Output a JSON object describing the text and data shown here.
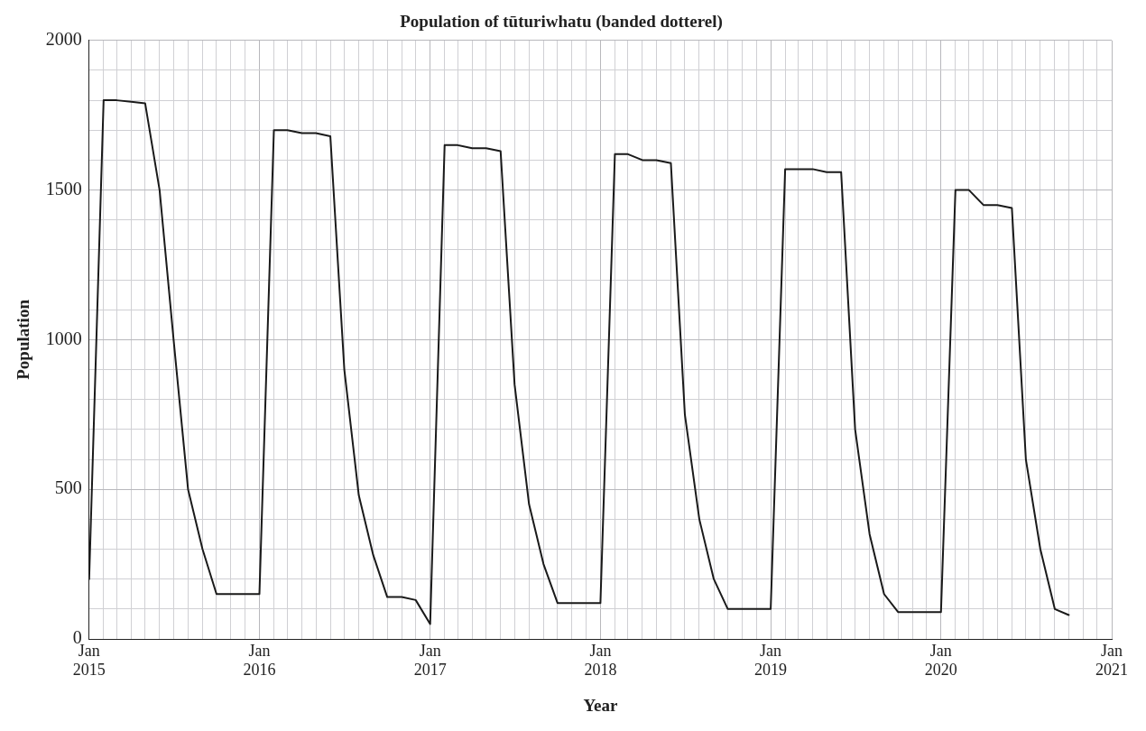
{
  "chart_data": {
    "type": "line",
    "title": "Population of tūturiwhatu (banded dotterel)",
    "xlabel": "Year",
    "ylabel": "Population",
    "x": [
      "2015-01",
      "2015-02",
      "2015-03",
      "2015-04",
      "2015-05",
      "2015-06",
      "2015-07",
      "2015-08",
      "2015-09",
      "2015-10",
      "2015-11",
      "2015-12",
      "2016-01",
      "2016-02",
      "2016-03",
      "2016-04",
      "2016-05",
      "2016-06",
      "2016-07",
      "2016-08",
      "2016-09",
      "2016-10",
      "2016-11",
      "2016-12",
      "2017-01",
      "2017-02",
      "2017-03",
      "2017-04",
      "2017-05",
      "2017-06",
      "2017-07",
      "2017-08",
      "2017-09",
      "2017-10",
      "2017-11",
      "2017-12",
      "2018-01",
      "2018-02",
      "2018-03",
      "2018-04",
      "2018-05",
      "2018-06",
      "2018-07",
      "2018-08",
      "2018-09",
      "2018-10",
      "2018-11",
      "2018-12",
      "2019-01",
      "2019-02",
      "2019-03",
      "2019-04",
      "2019-05",
      "2019-06",
      "2019-07",
      "2019-08",
      "2019-09",
      "2019-10",
      "2019-11",
      "2019-12",
      "2020-01",
      "2020-02",
      "2020-03",
      "2020-04",
      "2020-05",
      "2020-06",
      "2020-07",
      "2020-08",
      "2020-09",
      "2020-10"
    ],
    "series": [
      {
        "color": "#1a1a1a",
        "values": [
          200,
          1800,
          1800,
          1795,
          1790,
          1500,
          1000,
          500,
          300,
          150,
          150,
          150,
          150,
          1700,
          1700,
          1690,
          1690,
          1680,
          900,
          480,
          280,
          140,
          140,
          130,
          50,
          1650,
          1650,
          1640,
          1640,
          1630,
          850,
          450,
          250,
          120,
          120,
          120,
          120,
          1620,
          1620,
          1600,
          1600,
          1590,
          750,
          400,
          200,
          100,
          100,
          100,
          100,
          1570,
          1570,
          1570,
          1560,
          1560,
          700,
          350,
          150,
          90,
          90,
          90,
          90,
          1500,
          1500,
          1450,
          1450,
          1440,
          600,
          300,
          100,
          80
        ]
      }
    ],
    "xlim": [
      "2015-01",
      "2021-01"
    ],
    "xticks": [
      {
        "value": "2015-01",
        "label": "Jan 2015"
      },
      {
        "value": "2015-02",
        "label": null
      },
      {
        "value": "2015-03",
        "label": null
      },
      {
        "value": "2015-04",
        "label": null
      },
      {
        "value": "2015-05",
        "label": null
      },
      {
        "value": "2015-06",
        "label": null
      },
      {
        "value": "2015-07",
        "label": null
      },
      {
        "value": "2015-08",
        "label": null
      },
      {
        "value": "2015-09",
        "label": null
      },
      {
        "value": "2015-10",
        "label": null
      },
      {
        "value": "2015-11",
        "label": null
      },
      {
        "value": "2015-12",
        "label": null
      },
      {
        "value": "2016-01",
        "label": "Jan 2016"
      },
      {
        "value": "2016-02",
        "label": null
      },
      {
        "value": "2016-03",
        "label": null
      },
      {
        "value": "2016-04",
        "label": null
      },
      {
        "value": "2016-05",
        "label": null
      },
      {
        "value": "2016-06",
        "label": null
      },
      {
        "value": "2016-07",
        "label": null
      },
      {
        "value": "2016-08",
        "label": null
      },
      {
        "value": "2016-09",
        "label": null
      },
      {
        "value": "2016-10",
        "label": null
      },
      {
        "value": "2016-11",
        "label": null
      },
      {
        "value": "2016-12",
        "label": null
      },
      {
        "value": "2017-01",
        "label": "Jan 2017"
      },
      {
        "value": "2017-02",
        "label": null
      },
      {
        "value": "2017-03",
        "label": null
      },
      {
        "value": "2017-04",
        "label": null
      },
      {
        "value": "2017-05",
        "label": null
      },
      {
        "value": "2017-06",
        "label": null
      },
      {
        "value": "2017-07",
        "label": null
      },
      {
        "value": "2017-08",
        "label": null
      },
      {
        "value": "2017-09",
        "label": null
      },
      {
        "value": "2017-10",
        "label": null
      },
      {
        "value": "2017-11",
        "label": null
      },
      {
        "value": "2017-12",
        "label": null
      },
      {
        "value": "2018-01",
        "label": "Jan 2018"
      },
      {
        "value": "2018-02",
        "label": null
      },
      {
        "value": "2018-03",
        "label": null
      },
      {
        "value": "2018-04",
        "label": null
      },
      {
        "value": "2018-05",
        "label": null
      },
      {
        "value": "2018-06",
        "label": null
      },
      {
        "value": "2018-07",
        "label": null
      },
      {
        "value": "2018-08",
        "label": null
      },
      {
        "value": "2018-09",
        "label": null
      },
      {
        "value": "2018-10",
        "label": null
      },
      {
        "value": "2018-11",
        "label": null
      },
      {
        "value": "2018-12",
        "label": null
      },
      {
        "value": "2019-01",
        "label": "Jan 2019"
      },
      {
        "value": "2019-02",
        "label": null
      },
      {
        "value": "2019-03",
        "label": null
      },
      {
        "value": "2019-04",
        "label": null
      },
      {
        "value": "2019-05",
        "label": null
      },
      {
        "value": "2019-06",
        "label": null
      },
      {
        "value": "2019-07",
        "label": null
      },
      {
        "value": "2019-08",
        "label": null
      },
      {
        "value": "2019-09",
        "label": null
      },
      {
        "value": "2019-10",
        "label": null
      },
      {
        "value": "2019-11",
        "label": null
      },
      {
        "value": "2019-12",
        "label": null
      },
      {
        "value": "2020-01",
        "label": "Jan 2020"
      },
      {
        "value": "2020-02",
        "label": null
      },
      {
        "value": "2020-03",
        "label": null
      },
      {
        "value": "2020-04",
        "label": null
      },
      {
        "value": "2020-05",
        "label": null
      },
      {
        "value": "2020-06",
        "label": null
      },
      {
        "value": "2020-07",
        "label": null
      },
      {
        "value": "2020-08",
        "label": null
      },
      {
        "value": "2020-09",
        "label": null
      },
      {
        "value": "2020-10",
        "label": null
      },
      {
        "value": "2020-11",
        "label": null
      },
      {
        "value": "2020-12",
        "label": null
      },
      {
        "value": "2021-01",
        "label": "Jan 2021"
      }
    ],
    "ylim": [
      0,
      2000
    ],
    "yticks": [
      0,
      {
        "value": 100,
        "label": null
      },
      {
        "value": 200,
        "label": null
      },
      {
        "value": 300,
        "label": null
      },
      {
        "value": 400,
        "label": null
      },
      500,
      {
        "value": 600,
        "label": null
      },
      {
        "value": 700,
        "label": null
      },
      {
        "value": 800,
        "label": null
      },
      {
        "value": 900,
        "label": null
      },
      1000,
      {
        "value": 1100,
        "label": null
      },
      {
        "value": 1200,
        "label": null
      },
      {
        "value": 1300,
        "label": null
      },
      {
        "value": 1400,
        "label": null
      },
      1500,
      {
        "value": 1600,
        "label": null
      },
      {
        "value": 1700,
        "label": null
      },
      {
        "value": 1800,
        "label": null
      },
      {
        "value": 1900,
        "label": null
      },
      2000
    ],
    "grid": true,
    "legend": false,
    "marker": "none",
    "line_style": "solid"
  }
}
